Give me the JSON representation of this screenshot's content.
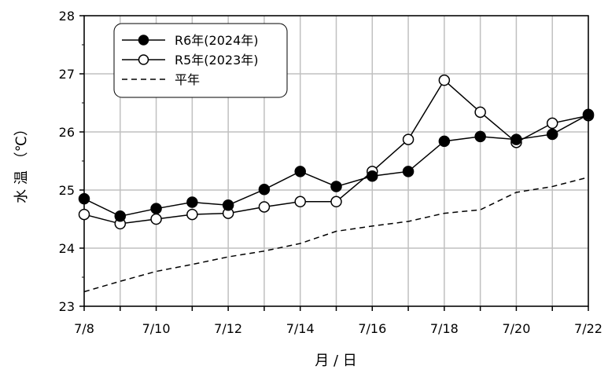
{
  "chart_data": {
    "type": "line",
    "title": "",
    "xlabel": "月 / 日",
    "ylabel": "水 温 （℃）",
    "ylim": [
      23,
      28
    ],
    "yticks": [
      "23",
      "24",
      "25",
      "26",
      "27",
      "28"
    ],
    "x_dates": [
      "7/8",
      "7/9",
      "7/10",
      "7/11",
      "7/12",
      "7/13",
      "7/14",
      "7/15",
      "7/16",
      "7/17",
      "7/18",
      "7/19",
      "7/20",
      "7/21",
      "7/22"
    ],
    "x_tick_labels": [
      "7/8",
      "7/10",
      "7/12",
      "7/14",
      "7/16",
      "7/18",
      "7/20",
      "7/22"
    ],
    "grid": true,
    "legend_position": "top-left",
    "series": [
      {
        "name": "R6年(2024年)",
        "marker": "filled-circle",
        "line": "solid",
        "color": "#000000",
        "values": [
          24.85,
          24.55,
          24.68,
          24.79,
          24.74,
          25.01,
          25.32,
          25.06,
          25.24,
          25.32,
          25.84,
          25.92,
          25.87,
          25.96,
          26.3
        ]
      },
      {
        "name": "R5年(2023年)",
        "marker": "open-circle",
        "line": "solid",
        "color": "#000000",
        "values": [
          24.58,
          24.42,
          24.5,
          24.58,
          24.6,
          24.71,
          24.8,
          24.8,
          25.32,
          25.87,
          26.89,
          26.34,
          25.82,
          26.15,
          26.28
        ]
      },
      {
        "name": "平年",
        "marker": "none",
        "line": "dashed",
        "color": "#000000",
        "values": [
          23.25,
          23.43,
          23.6,
          23.72,
          23.85,
          23.95,
          24.08,
          24.29,
          24.38,
          24.46,
          24.6,
          24.66,
          24.96,
          25.06,
          25.22
        ]
      }
    ]
  }
}
